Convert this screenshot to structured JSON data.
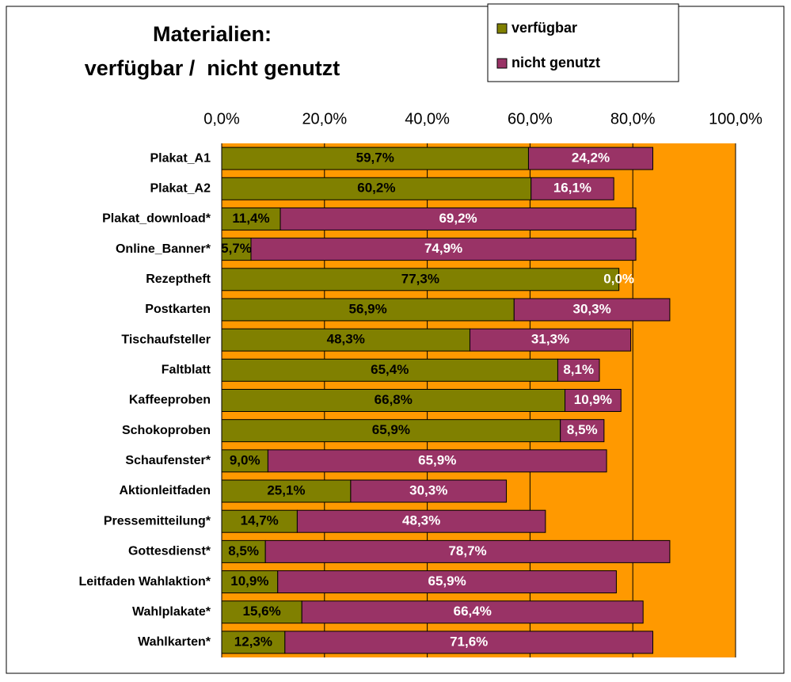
{
  "chart_data": {
    "type": "stacked_barh",
    "title": [
      "Materialien:",
      "verfügbar /  nicht genutzt"
    ],
    "categories": [
      "Plakat_A1",
      "Plakat_A2",
      "Plakat_download*",
      "Online_Banner*",
      "Rezeptheft",
      "Postkarten",
      "Tischaufsteller",
      "Faltblatt",
      "Kaffeeproben",
      "Schokoproben",
      "Schaufenster*",
      "Aktionleitfaden",
      "Pressemitteilung*",
      "Gottesdienst*",
      "Leitfaden Wahlaktion*",
      "Wahlplakate*",
      "Wahlkarten*"
    ],
    "series": [
      {
        "name": "verfügbar",
        "color": "#808000",
        "label_color": "#000000",
        "values": [
          59.7,
          60.2,
          11.4,
          5.7,
          77.3,
          56.9,
          48.3,
          65.4,
          66.8,
          65.9,
          9.0,
          25.1,
          14.7,
          8.5,
          10.9,
          15.6,
          12.3
        ],
        "value_labels": [
          "59,7%",
          "60,2%",
          "11,4%",
          "5,7%",
          "77,3%",
          "56,9%",
          "48,3%",
          "65,4%",
          "66,8%",
          "65,9%",
          "9,0%",
          "25,1%",
          "14,7%",
          "8,5%",
          "10,9%",
          "15,6%",
          "12,3%"
        ]
      },
      {
        "name": "nicht genutzt",
        "color": "#993366",
        "label_color": "#ffffff",
        "values": [
          24.2,
          16.1,
          69.2,
          74.9,
          0.0,
          30.3,
          31.3,
          8.1,
          10.9,
          8.5,
          65.9,
          30.3,
          48.3,
          78.7,
          65.9,
          66.4,
          71.6
        ],
        "value_labels": [
          "24,2%",
          "16,1%",
          "69,2%",
          "74,9%",
          "0,0%",
          "30,3%",
          "31,3%",
          "8,1%",
          "10,9%",
          "8,5%",
          "65,9%",
          "30,3%",
          "48,3%",
          "78,7%",
          "65,9%",
          "66,4%",
          "71,6%"
        ]
      }
    ],
    "xlim": [
      0,
      100
    ],
    "xticks": [
      {
        "value": 0,
        "label": "0,0%"
      },
      {
        "value": 20,
        "label": "20,0%"
      },
      {
        "value": 40,
        "label": "40,0%"
      },
      {
        "value": 60,
        "label": "60,0%"
      },
      {
        "value": 80,
        "label": "80,0%"
      },
      {
        "value": 100,
        "label": "100,0%"
      }
    ],
    "grid": true,
    "plot_background": "#ff9900",
    "legend": "top-right"
  }
}
